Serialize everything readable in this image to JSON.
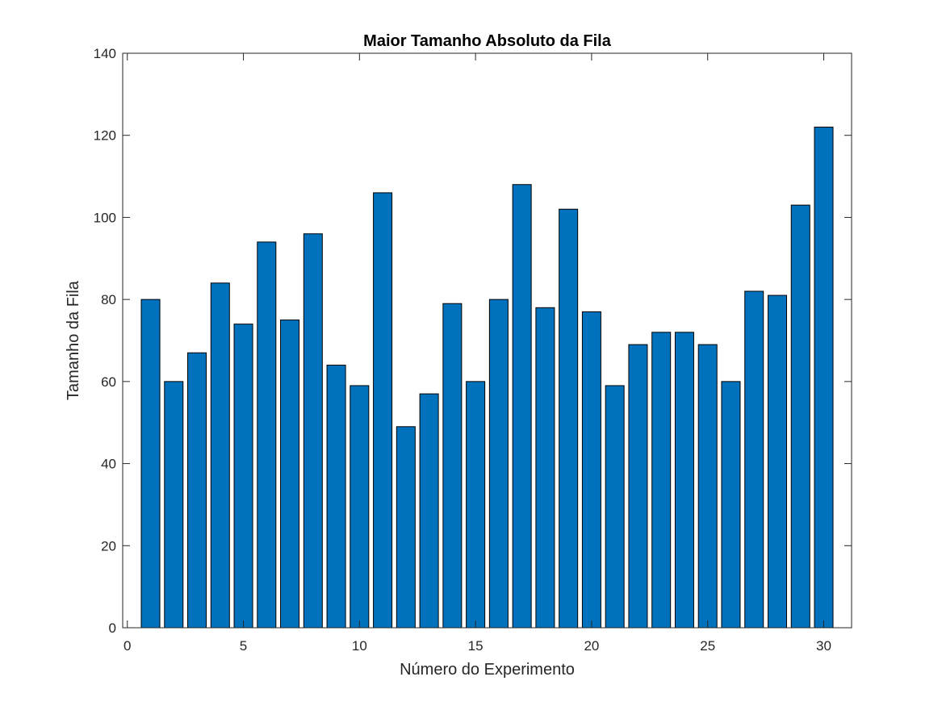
{
  "chart_data": {
    "type": "bar",
    "title": "Maior Tamanho Absoluto da Fila",
    "xlabel": "Número do Experimento",
    "ylabel": "Tamanho da Fila",
    "x": [
      1,
      2,
      3,
      4,
      5,
      6,
      7,
      8,
      9,
      10,
      11,
      12,
      13,
      14,
      15,
      16,
      17,
      18,
      19,
      20,
      21,
      22,
      23,
      24,
      25,
      26,
      27,
      28,
      29,
      30
    ],
    "values": [
      80,
      60,
      67,
      84,
      74,
      94,
      75,
      96,
      64,
      59,
      106,
      49,
      57,
      79,
      60,
      80,
      108,
      78,
      102,
      77,
      59,
      69,
      72,
      72,
      69,
      60,
      82,
      81,
      103,
      122
    ],
    "xlim": [
      -0.2,
      31.2
    ],
    "ylim": [
      0,
      140
    ],
    "xticks": [
      "0",
      "5",
      "10",
      "15",
      "20",
      "25",
      "30"
    ],
    "yticks": [
      "0",
      "20",
      "40",
      "60",
      "80",
      "100",
      "120",
      "140"
    ],
    "grid": false,
    "bar_color": "#0072BD",
    "edge_color": "#000000"
  }
}
